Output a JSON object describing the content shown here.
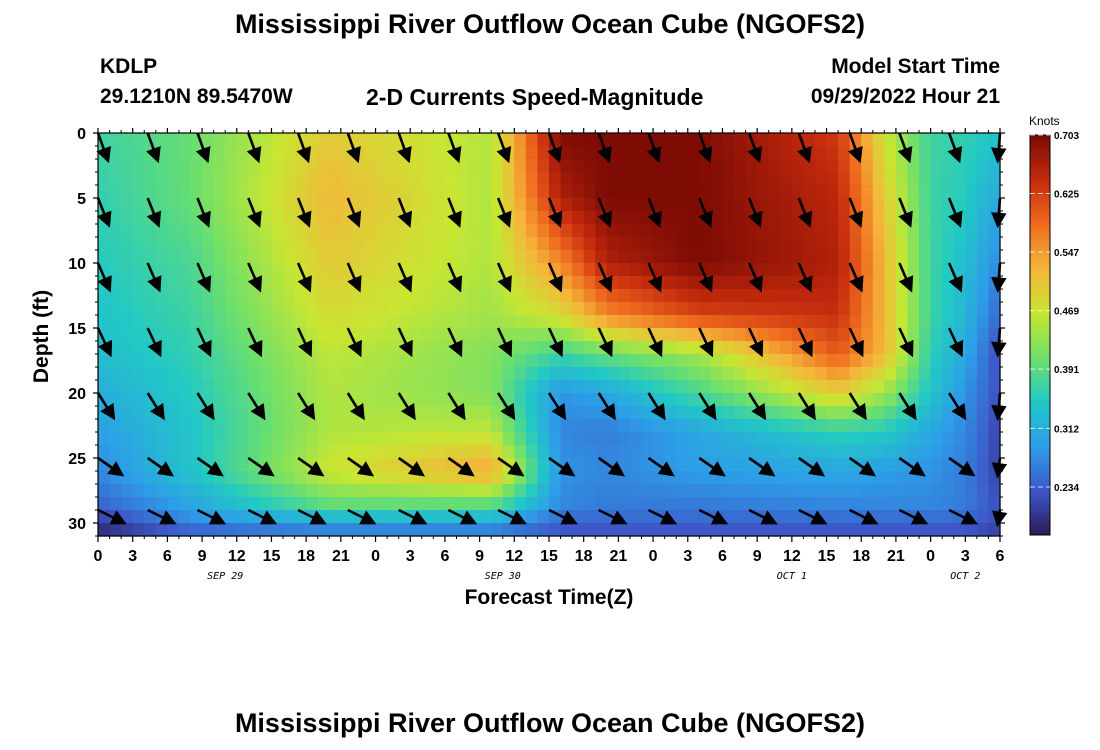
{
  "page": {
    "title": "Mississippi River Outflow Ocean Cube (NGOFS2)",
    "station_id": "KDLP",
    "station_coords": "29.1210N  89.5470W",
    "subtitle": "2-D Currents Speed-Magnitude",
    "model_start_label": "Model Start Time",
    "model_start_time": "09/29/2022 Hour 21",
    "bottom_title": "Mississippi River Outflow Ocean Cube (NGOFS2)"
  },
  "chart_data": {
    "type": "heatmap",
    "xlabel": "Forecast Time(Z)",
    "ylabel": "Depth (ft)",
    "x_hours_range": [
      0,
      78
    ],
    "y_range": [
      0,
      31
    ],
    "y_ticks": [
      0,
      5,
      10,
      15,
      20,
      25,
      30
    ],
    "x_tick_labels": [
      "0",
      "3",
      "6",
      "9",
      "12",
      "15",
      "18",
      "21",
      "0",
      "3",
      "6",
      "9",
      "12",
      "15",
      "18",
      "21",
      "0",
      "3",
      "6",
      "9",
      "12",
      "15",
      "18",
      "21",
      "0",
      "3",
      "6"
    ],
    "date_labels": [
      {
        "label": "SEP 29",
        "hour": 11
      },
      {
        "label": "SEP 30",
        "hour": 35
      },
      {
        "label": "OCT 1",
        "hour": 60
      },
      {
        "label": "OCT 2",
        "hour": 75
      }
    ],
    "colorbar": {
      "unit": "Knots",
      "min": 0.17,
      "max": 0.703,
      "tick_labels": [
        "0.703",
        "0.625",
        "0.547",
        "0.469",
        "0.391",
        "0.312",
        "0.234"
      ],
      "tick_values": [
        0.703,
        0.625,
        0.547,
        0.469,
        0.391,
        0.312,
        0.234
      ]
    },
    "color_scale": [
      "#2b1a55",
      "#3d58c9",
      "#2d9ee8",
      "#22c9c4",
      "#6fe06a",
      "#c8e632",
      "#f5b53a",
      "#ef6a1e",
      "#c42a0d",
      "#7a0a04"
    ],
    "speed_knots_by_depth": [
      {
        "depth_ft": 0,
        "hours": [
          0,
          8,
          20,
          34,
          40,
          44,
          52,
          64,
          68,
          72,
          75,
          78
        ],
        "speed": [
          0.37,
          0.4,
          0.5,
          0.45,
          0.7,
          0.7,
          0.7,
          0.63,
          0.47,
          0.37,
          0.36,
          0.34
        ]
      },
      {
        "depth_ft": 5,
        "hours": [
          0,
          8,
          20,
          34,
          40,
          44,
          52,
          64,
          68,
          72,
          75,
          78
        ],
        "speed": [
          0.36,
          0.4,
          0.52,
          0.45,
          0.66,
          0.7,
          0.7,
          0.65,
          0.5,
          0.37,
          0.35,
          0.3
        ]
      },
      {
        "depth_ft": 10,
        "hours": [
          0,
          8,
          20,
          34,
          40,
          44,
          52,
          64,
          68,
          72,
          75,
          78
        ],
        "speed": [
          0.35,
          0.38,
          0.5,
          0.45,
          0.56,
          0.66,
          0.7,
          0.66,
          0.52,
          0.37,
          0.33,
          0.27
        ]
      },
      {
        "depth_ft": 14,
        "hours": [
          0,
          8,
          20,
          34,
          40,
          44,
          52,
          64,
          68,
          72,
          75,
          78
        ],
        "speed": [
          0.34,
          0.37,
          0.48,
          0.44,
          0.48,
          0.56,
          0.62,
          0.64,
          0.52,
          0.37,
          0.32,
          0.24
        ]
      },
      {
        "depth_ft": 17,
        "hours": [
          0,
          8,
          20,
          34,
          40,
          44,
          52,
          64,
          68,
          72,
          75,
          78
        ],
        "speed": [
          0.33,
          0.36,
          0.46,
          0.42,
          0.37,
          0.4,
          0.44,
          0.6,
          0.52,
          0.36,
          0.3,
          0.22
        ]
      },
      {
        "depth_ft": 20,
        "hours": [
          0,
          8,
          20,
          34,
          40,
          44,
          52,
          64,
          68,
          72,
          75,
          78
        ],
        "speed": [
          0.31,
          0.35,
          0.45,
          0.42,
          0.28,
          0.3,
          0.38,
          0.5,
          0.44,
          0.34,
          0.28,
          0.22
        ]
      },
      {
        "depth_ft": 23,
        "hours": [
          0,
          8,
          20,
          34,
          40,
          44,
          52,
          64,
          68,
          72,
          75,
          78
        ],
        "speed": [
          0.29,
          0.34,
          0.45,
          0.46,
          0.27,
          0.26,
          0.3,
          0.36,
          0.35,
          0.3,
          0.27,
          0.21
        ]
      },
      {
        "depth_ft": 26,
        "hours": [
          0,
          8,
          20,
          34,
          40,
          44,
          52,
          64,
          68,
          72,
          75,
          78
        ],
        "speed": [
          0.27,
          0.34,
          0.47,
          0.54,
          0.28,
          0.27,
          0.29,
          0.3,
          0.29,
          0.28,
          0.26,
          0.21
        ]
      },
      {
        "depth_ft": 28.5,
        "hours": [
          0,
          8,
          20,
          34,
          40,
          44,
          52,
          64,
          68,
          72,
          75,
          78
        ],
        "speed": [
          0.24,
          0.3,
          0.4,
          0.4,
          0.27,
          0.26,
          0.26,
          0.27,
          0.27,
          0.27,
          0.26,
          0.22
        ]
      },
      {
        "depth_ft": 30,
        "hours": [
          0,
          8,
          20,
          34,
          40,
          44,
          52,
          64,
          68,
          72,
          75,
          78
        ],
        "speed": [
          0.2,
          0.27,
          0.3,
          0.3,
          0.24,
          0.24,
          0.24,
          0.24,
          0.24,
          0.24,
          0.24,
          0.22
        ]
      },
      {
        "depth_ft": 31,
        "hours": [
          0,
          8,
          20,
          34,
          40,
          44,
          52,
          64,
          68,
          72,
          75,
          78
        ],
        "speed": [
          0.18,
          0.22,
          0.24,
          0.24,
          0.22,
          0.22,
          0.22,
          0.22,
          0.22,
          0.22,
          0.22,
          0.2
        ]
      }
    ],
    "vector_direction_deg_by_depth": [
      {
        "depth_ft": 0,
        "angle": 70
      },
      {
        "depth_ft": 15,
        "angle": 65
      },
      {
        "depth_ft": 22,
        "angle": 55
      },
      {
        "depth_ft": 25,
        "angle": 35
      },
      {
        "depth_ft": 28,
        "angle": 18
      },
      {
        "depth_ft": 30,
        "angle": 35
      }
    ],
    "vector_hours": [
      0,
      4.3,
      8.6,
      13,
      17.3,
      21.6,
      26,
      30.3,
      34.6,
      39,
      43.3,
      47.6,
      52,
      56.3,
      60.6,
      65,
      69.3,
      73.6,
      78
    ],
    "vector_depths": [
      0,
      5,
      10,
      15,
      20,
      25,
      29
    ]
  }
}
